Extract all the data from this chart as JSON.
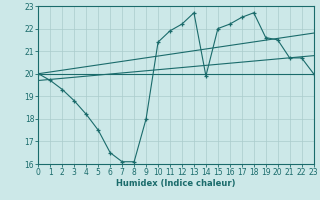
{
  "xlabel": "Humidex (Indice chaleur)",
  "bg_color": "#cce8e8",
  "grid_color": "#aacccc",
  "line_color": "#1a6b6b",
  "xlim": [
    0,
    23
  ],
  "ylim": [
    16,
    23
  ],
  "yticks": [
    16,
    17,
    18,
    19,
    20,
    21,
    22,
    23
  ],
  "xticks": [
    0,
    1,
    2,
    3,
    4,
    5,
    6,
    7,
    8,
    9,
    10,
    11,
    12,
    13,
    14,
    15,
    16,
    17,
    18,
    19,
    20,
    21,
    22,
    23
  ],
  "curve_x": [
    0,
    1,
    2,
    3,
    4,
    5,
    6,
    7,
    8,
    9,
    10,
    11,
    12,
    13,
    14,
    15,
    16,
    17,
    18,
    19,
    20,
    21,
    22,
    23
  ],
  "curve_y": [
    20.0,
    19.7,
    19.3,
    18.8,
    18.2,
    17.5,
    16.5,
    16.1,
    16.1,
    18.0,
    21.4,
    21.9,
    22.2,
    22.7,
    19.9,
    22.0,
    22.2,
    22.5,
    22.7,
    21.6,
    21.5,
    20.7,
    20.7,
    20.0
  ],
  "line1_x": [
    0,
    23
  ],
  "line1_y": [
    20.0,
    20.0
  ],
  "line2_x": [
    0,
    23
  ],
  "line2_y": [
    19.7,
    20.8
  ],
  "line3_x": [
    0,
    23
  ],
  "line3_y": [
    20.0,
    21.8
  ]
}
